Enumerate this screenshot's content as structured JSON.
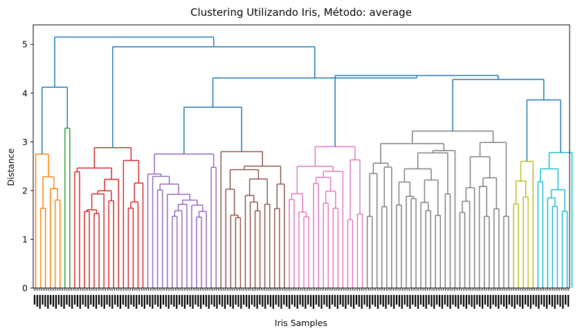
{
  "chart_data": {
    "type": "dendrogram",
    "title": "Clustering Utilizando Iris, Método: average",
    "xlabel": "Iris Samples",
    "ylabel": "Distance",
    "ylim": [
      0,
      5.4
    ],
    "y_ticks": [
      0,
      1,
      2,
      3,
      4,
      5
    ],
    "grid": false,
    "above_threshold_color": "#1f77b4",
    "clusters": [
      {
        "color": "#ff7f0e",
        "share": 0.056,
        "top_height": 2.75,
        "min_height": 1.5
      },
      {
        "color": "#2ca02c",
        "share": 0.017,
        "top_height": 3.28,
        "min_height": 1.6
      },
      {
        "color": "#d62728",
        "share": 0.134,
        "top_height": 2.88,
        "min_height": 1.45
      },
      {
        "color": "#9467bd",
        "share": 0.133,
        "top_height": 2.75,
        "min_height": 1.4
      },
      {
        "color": "#8c564b",
        "share": 0.124,
        "top_height": 2.8,
        "min_height": 1.4
      },
      {
        "color": "#e377c2",
        "share": 0.145,
        "top_height": 2.9,
        "min_height": 1.35
      },
      {
        "color": "#7f7f7f",
        "share": 0.269,
        "top_height": 3.22,
        "min_height": 1.4
      },
      {
        "color": "#bcbd22",
        "share": 0.045,
        "top_height": 2.6,
        "min_height": 1.55
      },
      {
        "color": "#17becf",
        "share": 0.072,
        "top_height": 2.78,
        "min_height": 1.5
      }
    ],
    "upper_merges": [
      {
        "left": "0",
        "right": "1",
        "height": 4.12
      },
      {
        "left": "3",
        "right": "4",
        "height": 3.71
      },
      {
        "left": "7",
        "right": "8",
        "height": 3.86
      },
      {
        "left": "6",
        "right": "7-8",
        "height": 4.28
      },
      {
        "left": "5",
        "right": "6-8",
        "height": 4.36
      },
      {
        "left": "3-4",
        "right": "5-8",
        "height": 4.31
      },
      {
        "left": "2",
        "right": "3-8",
        "height": 4.95
      },
      {
        "left": "0-1",
        "right": "2-8",
        "height": 5.15
      }
    ]
  }
}
